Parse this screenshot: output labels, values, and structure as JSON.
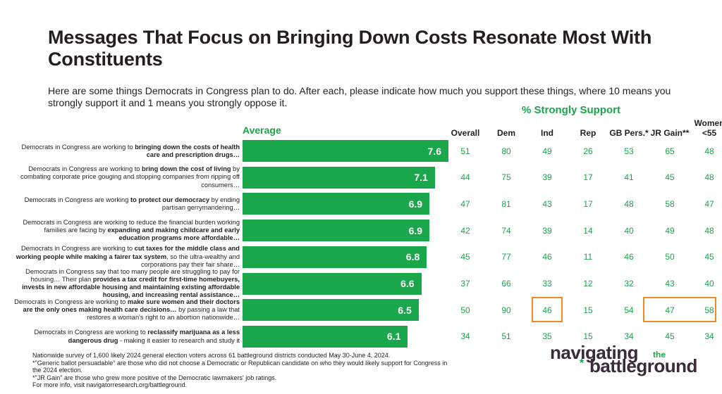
{
  "title": "Messages That Focus on Bringing Down Costs Resonate Most With Constituents",
  "subtitle": "Here are some things Democrats in Congress plan to do. After each, please indicate how much you support these things, where 10 means you strongly support it and 1 means you strongly oppose it.",
  "group_header": "% Strongly Support",
  "average_label": "Average",
  "columns": [
    "Overall",
    "Dem",
    "Ind",
    "Rep",
    "GB Pers.*",
    "JR Gain**",
    "Women <55"
  ],
  "rows": [
    {
      "pre": "Democrats in Congress are working to ",
      "bold": "bringing down the costs of health care and prescription drugs…",
      "post": "",
      "avg": "7.6",
      "cells": [
        "51",
        "80",
        "49",
        "26",
        "53",
        "65",
        "48"
      ]
    },
    {
      "pre": "Democrats in Congress are working to ",
      "bold": "bring down the cost of living",
      "post": " by combating corporate price gouging and stopping companies from ripping off consumers…",
      "avg": "7.1",
      "cells": [
        "44",
        "75",
        "39",
        "17",
        "41",
        "45",
        "48"
      ]
    },
    {
      "pre": "Democrats in Congress are working ",
      "bold": "to protect our democracy",
      "post": " by ending partisan gerrymandering…",
      "avg": "6.9",
      "cells": [
        "47",
        "81",
        "43",
        "17",
        "48",
        "58",
        "47"
      ]
    },
    {
      "pre": "Democrats in Congress are working to reduce the financial burden working families are facing by ",
      "bold": "expanding and making childcare and early education programs more affordable…",
      "post": "",
      "avg": "6.9",
      "cells": [
        "42",
        "74",
        "39",
        "14",
        "40",
        "49",
        "48"
      ]
    },
    {
      "pre": "Democrats in Congress are working to ",
      "bold": "cut taxes for the middle class and working people while making a fairer tax system",
      "post": ", so the ultra-wealthy and corporations pay their fair share…",
      "avg": "6.8",
      "cells": [
        "45",
        "77",
        "46",
        "11",
        "46",
        "50",
        "45"
      ]
    },
    {
      "pre": "Democrats in Congress say that too many people are struggling to pay for housing… Their plan ",
      "bold": "provides a tax credit for first-time homebuyers, invests in new affordable housing and maintaining existing affordable housing, and increasing rental assistance…",
      "post": "",
      "avg": "6.6",
      "cells": [
        "37",
        "66",
        "33",
        "12",
        "32",
        "43",
        "40"
      ]
    },
    {
      "pre": "Democrats in Congress are working to ",
      "bold": "make sure women and their doctors are the only ones making health care decisions…",
      "post": " by passing a law that restores a woman's right to an abortion nationwide…",
      "avg": "6.5",
      "cells": [
        "50",
        "90",
        "46",
        "15",
        "54",
        "47",
        "58"
      ]
    },
    {
      "pre": "Democrats in Congress are working to ",
      "bold": "reclassify marijuana as a less dangerous drug",
      "post": " - making it easier to research and study it",
      "avg": "6.1",
      "cells": [
        "34",
        "51",
        "35",
        "15",
        "34",
        "45",
        "34"
      ]
    }
  ],
  "chart_data": {
    "type": "bar",
    "orientation": "horizontal",
    "title": "Messages That Focus on Bringing Down Costs Resonate Most With Constituents",
    "series": [
      {
        "name": "Average",
        "values": [
          7.6,
          7.1,
          6.9,
          6.9,
          6.8,
          6.6,
          6.5,
          6.1
        ]
      }
    ],
    "categories": [
      "bringing down the costs of health care and prescription drugs",
      "bring down the cost of living",
      "to protect our democracy",
      "expanding and making childcare and early education programs more affordable",
      "cut taxes for the middle class and working people while making a fairer tax system",
      "provides a tax credit for first-time homebuyers…",
      "make sure women and their doctors are the only ones making health care decisions",
      "reclassify marijuana as a less dangerous drug"
    ],
    "xlim": [
      0,
      10
    ],
    "bar_color": "#1aa64a",
    "table_value_color": "#1aa64a",
    "highlight_color": "#f08a24",
    "highlighted_cells": [
      [
        6,
        2
      ],
      [
        6,
        5
      ],
      [
        6,
        6
      ]
    ]
  },
  "footnotes": [
    "Nationwide survey of 1,600 likely 2024 general election voters across 61 battleground districts conducted May 30-June 4, 2024.",
    "*\"Generic ballot persuadable\" are those who did not choose a Democratic or Republican candidate on who they would likely support for Congress in the 2024 election.",
    "*\"JR Gain\" are those who grew more positive of the Democratic lawmakers' job ratings.",
    "For more info, visit navigatorresearch.org/battleground."
  ],
  "logo": {
    "line1": "navigating",
    "the": "the",
    "star": "*",
    "line2": "battleground"
  }
}
